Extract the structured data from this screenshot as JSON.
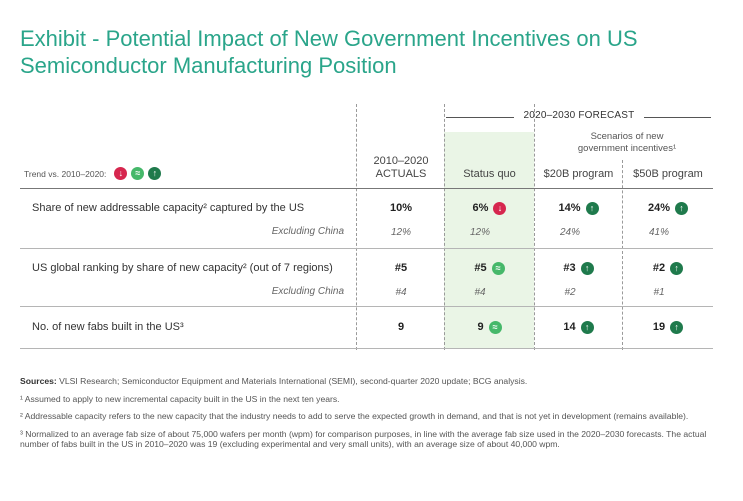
{
  "title_line1": "Exhibit - Potential Impact of New Government Incentives on US",
  "title_line2": "Semiconductor Manufacturing Position",
  "forecast_label": "2020–2030 FORECAST",
  "scenarios_line1": "Scenarios of new",
  "scenarios_line2": "government incentives¹",
  "columns": {
    "actuals_line1": "2010–2020",
    "actuals_line2": "ACTUALS",
    "status_quo": "Status quo",
    "b20": "$20B program",
    "b50": "$50B program"
  },
  "trend_label": "Trend vs. 2010–2020:",
  "icons": {
    "down": "↓",
    "flat": "≈",
    "up": "↑"
  },
  "rows": [
    {
      "label": "Share of new addressable capacity² captured by the US",
      "actuals": "10%",
      "status_quo": "6%",
      "b20": "14%",
      "b50": "24%",
      "sub_label": "Excluding China",
      "sub_actuals": "12%",
      "sub_status_quo": "12%",
      "sub_b20": "24%",
      "sub_b50": "41%"
    },
    {
      "label": "US global ranking by share of new capacity² (out of 7 regions)",
      "actuals": "#5",
      "status_quo": "#5",
      "b20": "#3",
      "b50": "#2",
      "sub_label": "Excluding China",
      "sub_actuals": "#4",
      "sub_status_quo": "#4",
      "sub_b20": "#2",
      "sub_b50": "#1"
    },
    {
      "label": "No. of new fabs built in the US³",
      "actuals": "9",
      "status_quo": "9",
      "b20": "14",
      "b50": "19"
    }
  ],
  "notes": {
    "sources_label": "Sources:",
    "sources_text": " VLSI Research; Semiconductor Equipment and Materials International (SEMI), second-quarter 2020 update; BCG analysis.",
    "n1": "¹ Assumed to apply to new incremental capacity built in the US in the next ten years.",
    "n2": "² Addressable capacity refers to the new capacity that the industry needs to add to serve the expected growth in demand, and that is not yet in development (remains available).",
    "n3": "³ Normalized to an average fab size of about 75,000 wafers per month (wpm) for comparison purposes, in line with the average fab size used in the 2020–2030 forecasts. The actual number of fabs built in the US in 2010–2020 was 19 (excluding experimental and very small units), with an average size of about 40,000 wpm."
  },
  "colors": {
    "title": "#2aa58a",
    "down": "#d6264e",
    "flat": "#46b86a",
    "up": "#1f7a4c",
    "highlight": "#eaf5e6"
  }
}
